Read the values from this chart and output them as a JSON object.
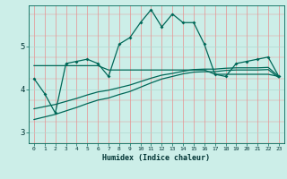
{
  "xlabel": "Humidex (Indice chaleur)",
  "background_color": "#cceee8",
  "grid_color_v": "#e89090",
  "grid_color_h": "#b0d8d0",
  "line_color": "#006858",
  "xlim": [
    -0.5,
    23.5
  ],
  "ylim": [
    2.75,
    5.95
  ],
  "yticks": [
    3,
    4,
    5
  ],
  "xticks": [
    0,
    1,
    2,
    3,
    4,
    5,
    6,
    7,
    8,
    9,
    10,
    11,
    12,
    13,
    14,
    15,
    16,
    17,
    18,
    19,
    20,
    21,
    22,
    23
  ],
  "series1_x": [
    0,
    1,
    2,
    3,
    4,
    5,
    6,
    7,
    8,
    9,
    10,
    11,
    12,
    13,
    14,
    15,
    16,
    17,
    18,
    19,
    20,
    21,
    22,
    23
  ],
  "series1_y": [
    4.25,
    3.9,
    3.45,
    4.6,
    4.65,
    4.7,
    4.6,
    4.3,
    5.05,
    5.2,
    5.55,
    5.85,
    5.45,
    5.75,
    5.55,
    5.55,
    5.05,
    4.35,
    4.3,
    4.6,
    4.65,
    4.7,
    4.75,
    4.3
  ],
  "series2_x": [
    0,
    1,
    2,
    3,
    4,
    5,
    6,
    7,
    8,
    9,
    10,
    11,
    12,
    13,
    14,
    15,
    16,
    17,
    18,
    19,
    20,
    21,
    22,
    23
  ],
  "series2_y": [
    4.55,
    4.55,
    4.55,
    4.55,
    4.55,
    4.55,
    4.55,
    4.45,
    4.45,
    4.45,
    4.45,
    4.45,
    4.45,
    4.45,
    4.45,
    4.45,
    4.45,
    4.35,
    4.35,
    4.35,
    4.35,
    4.35,
    4.35,
    4.3
  ],
  "series3_x": [
    0,
    1,
    2,
    3,
    4,
    5,
    6,
    7,
    8,
    9,
    10,
    11,
    12,
    13,
    14,
    15,
    16,
    17,
    18,
    19,
    20,
    21,
    22,
    23
  ],
  "series3_y": [
    3.55,
    3.6,
    3.65,
    3.72,
    3.79,
    3.87,
    3.94,
    3.98,
    4.04,
    4.1,
    4.18,
    4.26,
    4.33,
    4.37,
    4.42,
    4.46,
    4.47,
    4.47,
    4.49,
    4.5,
    4.5,
    4.5,
    4.51,
    4.3
  ],
  "series4_x": [
    0,
    1,
    2,
    3,
    4,
    5,
    6,
    7,
    8,
    9,
    10,
    11,
    12,
    13,
    14,
    15,
    16,
    17,
    18,
    19,
    20,
    21,
    22,
    23
  ],
  "series4_y": [
    3.3,
    3.36,
    3.42,
    3.5,
    3.58,
    3.67,
    3.75,
    3.8,
    3.88,
    3.95,
    4.05,
    4.15,
    4.24,
    4.3,
    4.36,
    4.4,
    4.41,
    4.41,
    4.44,
    4.45,
    4.45,
    4.45,
    4.46,
    4.27
  ]
}
